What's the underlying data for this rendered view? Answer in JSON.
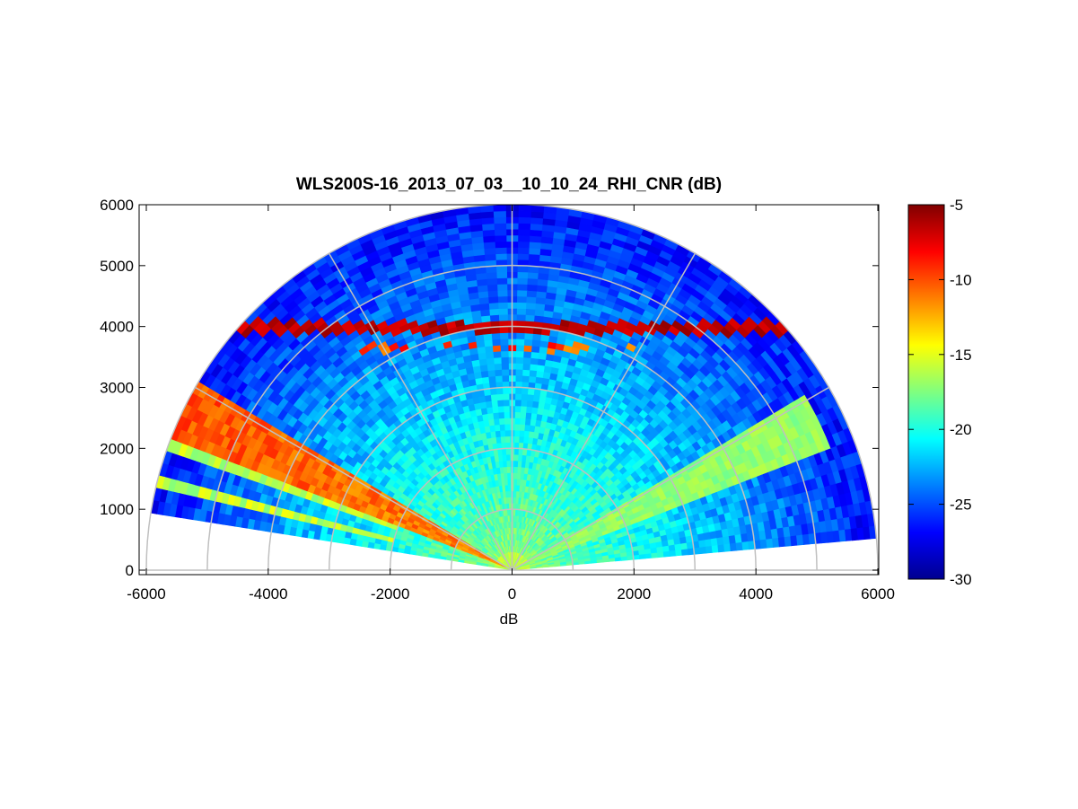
{
  "chart_data": {
    "type": "heatmap",
    "subtype": "polar RHI scan (range-height indicator)",
    "title": "WLS200S-16_2013_07_03__10_10_24_RHI_CNR (dB)",
    "xlabel": "dB",
    "ylabel": "",
    "xlim": [
      -6000,
      6000
    ],
    "ylim": [
      0,
      6000
    ],
    "x_ticks": [
      -6000,
      -4000,
      -2000,
      0,
      2000,
      4000,
      6000
    ],
    "y_ticks": [
      0,
      1000,
      2000,
      3000,
      4000,
      5000,
      6000
    ],
    "polar_grid": {
      "range_rings": [
        1000,
        2000,
        3000,
        4000,
        5000,
        6000
      ],
      "spoke_angles_deg": [
        0,
        30,
        60,
        90,
        120,
        150,
        180
      ],
      "grid_color": "#c0c0c0"
    },
    "scan": {
      "max_range": 6000,
      "elevation_start_deg": 5,
      "elevation_end_deg": 171,
      "range_gate": 100,
      "elevation_step_deg": 2
    },
    "colorbar": {
      "colormap": "jet",
      "min": -30,
      "max": -5,
      "ticks": [
        -5,
        -10,
        -15,
        -20,
        -25,
        -30
      ]
    },
    "features": [
      {
        "name": "elevated aerosol layer",
        "height": 4000,
        "cnr_db": -5
      },
      {
        "name": "near-field high return",
        "range_max": 2000,
        "cnr_db": -17
      },
      {
        "name": "left beam sector (~150-158 deg)",
        "range_max": 6000,
        "cnr_db": -11
      },
      {
        "name": "right beam sector (~22-30 deg)",
        "range_max": 5600,
        "cnr_db": -17
      },
      {
        "name": "background free troposphere",
        "cnr_db": -26
      }
    ]
  }
}
